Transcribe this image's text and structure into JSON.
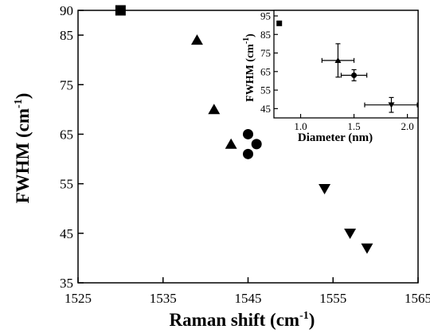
{
  "chart_data": [
    {
      "type": "scatter",
      "xlabel": "Raman shift (cm",
      "xlabel_sup": "-1",
      "xlabel_end": ")",
      "ylabel": "FWHM (cm",
      "ylabel_sup": "-1",
      "ylabel_end": ")",
      "xlim": [
        1525,
        1565
      ],
      "ylim": [
        35,
        90
      ],
      "xticks": [
        1525,
        1535,
        1545,
        1555,
        1565
      ],
      "yticks": [
        35,
        45,
        55,
        65,
        75,
        85,
        90
      ],
      "grid": false,
      "series": [
        {
          "marker": "square",
          "points": [
            [
              1530,
              90
            ]
          ]
        },
        {
          "marker": "triangle-up",
          "points": [
            [
              1539,
              84
            ],
            [
              1541,
              70
            ],
            [
              1543,
              63
            ]
          ]
        },
        {
          "marker": "circle",
          "points": [
            [
              1545,
              65
            ],
            [
              1546,
              63
            ],
            [
              1545,
              61
            ]
          ]
        },
        {
          "marker": "triangle-down",
          "points": [
            [
              1554,
              54
            ],
            [
              1557,
              45
            ],
            [
              1559,
              42
            ]
          ]
        }
      ]
    },
    {
      "type": "scatter",
      "xlabel": "Diameter (nm)",
      "ylabel": "FWHM (cm",
      "ylabel_sup": "-1",
      "ylabel_end": ")",
      "xlim": [
        0.75,
        2.1
      ],
      "ylim": [
        40,
        98
      ],
      "xticks": [
        "1.0",
        "1.5",
        "2.0"
      ],
      "yticks": [
        45,
        55,
        65,
        75,
        85,
        95
      ],
      "grid": false,
      "series": [
        {
          "marker": "square",
          "points": [
            {
              "x": 0.8,
              "y": 91,
              "xerr": 0,
              "yerr": 0
            }
          ]
        },
        {
          "marker": "triangle-up",
          "points": [
            {
              "x": 1.35,
              "y": 71,
              "xerr": 0.15,
              "yerr": 9
            }
          ]
        },
        {
          "marker": "circle",
          "points": [
            {
              "x": 1.5,
              "y": 63,
              "xerr": 0.12,
              "yerr": 3
            }
          ]
        },
        {
          "marker": "triangle-down",
          "points": [
            {
              "x": 1.85,
              "y": 47,
              "xerr": 0.25,
              "yerr": 4
            }
          ]
        }
      ]
    }
  ]
}
